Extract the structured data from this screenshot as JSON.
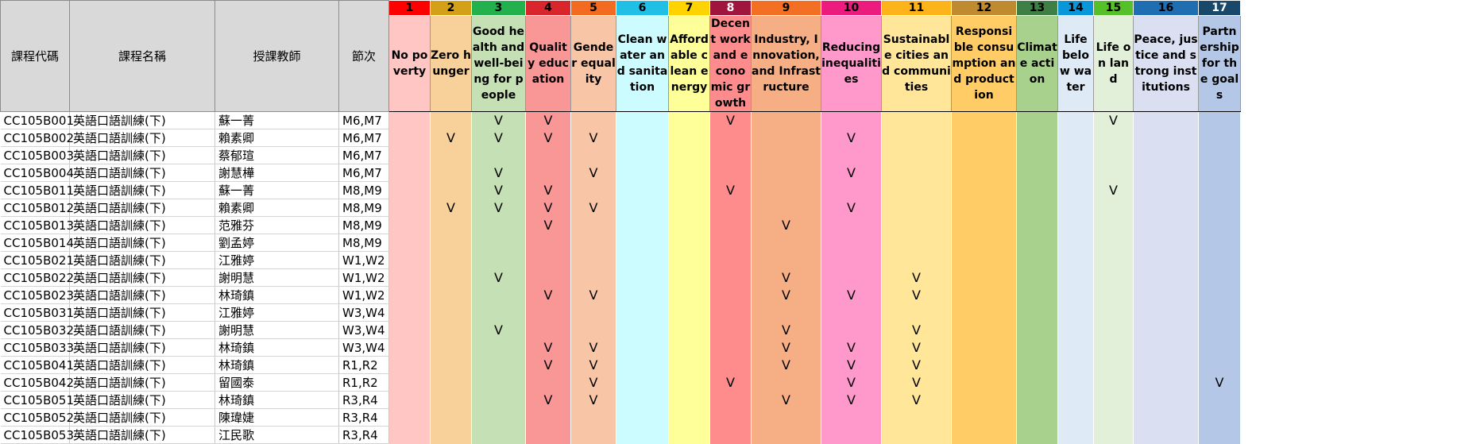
{
  "headers": [
    "課程代碼",
    "課程名稱",
    "授課教師",
    "節次"
  ],
  "goals": [
    {
      "num": "1",
      "label": "No poverty",
      "head": "#ff0000",
      "fill": "#ffc6c4",
      "white": false
    },
    {
      "num": "2",
      "label": "Zero hunger",
      "head": "#d4a017",
      "fill": "#f8d19a",
      "white": false
    },
    {
      "num": "3",
      "label": "Good health and well-being for people",
      "head": "#22b14c",
      "fill": "#c5e0b4",
      "white": false
    },
    {
      "num": "4",
      "label": "Quality education",
      "head": "#d9262c",
      "fill": "#f99696",
      "white": false
    },
    {
      "num": "5",
      "label": "Gender equality",
      "head": "#f26b20",
      "fill": "#f8c5a6",
      "white": false
    },
    {
      "num": "6",
      "label": "Clean water and sanitation",
      "head": "#1fbfe6",
      "fill": "#ccfcff",
      "white": false
    },
    {
      "num": "7",
      "label": "Affordable clean energy",
      "head": "#ffd300",
      "fill": "#ffff99",
      "white": false
    },
    {
      "num": "8",
      "label": "Decent work and economic growth",
      "head": "#a0153e",
      "fill": "#ff8c8c",
      "white": true
    },
    {
      "num": "9",
      "label": "Industry, Innovation, and Infrastructure",
      "head": "#f36f24",
      "fill": "#f6ae84",
      "white": false
    },
    {
      "num": "10",
      "label": "Reducing inequalities",
      "head": "#eb1c7e",
      "fill": "#ff99cc",
      "white": false
    },
    {
      "num": "11",
      "label": "Sustainable cities and communities",
      "head": "#fcb41a",
      "fill": "#ffe699",
      "white": false
    },
    {
      "num": "12",
      "label": "Responsible consumption and production",
      "head": "#bf8b2e",
      "fill": "#ffcc66",
      "white": false
    },
    {
      "num": "13",
      "label": "Climate action",
      "head": "#3f7e44",
      "fill": "#a9d18e",
      "white": false
    },
    {
      "num": "14",
      "label": "Life below water",
      "head": "#0a97d9",
      "fill": "#deebf7",
      "white": false
    },
    {
      "num": "15",
      "label": "Life on land",
      "head": "#56c02b",
      "fill": "#e2efd9",
      "white": false
    },
    {
      "num": "16",
      "label": "Peace, justice and strong institutions",
      "head": "#1f6eb2",
      "fill": "#dae0f2",
      "white": false
    },
    {
      "num": "17",
      "label": "Partnership for the goals",
      "head": "#19486a",
      "fill": "#b4c7e7",
      "white": true
    }
  ],
  "rows": [
    {
      "code": "CC105B001",
      "name": "英語口語訓練(下)",
      "teacher": "蘇一菁",
      "period": "M6,M7",
      "marks": [
        3,
        4,
        8,
        15
      ]
    },
    {
      "code": "CC105B002",
      "name": "英語口語訓練(下)",
      "teacher": "賴素卿",
      "period": "M6,M7",
      "marks": [
        2,
        3,
        4,
        5,
        10
      ]
    },
    {
      "code": "CC105B003",
      "name": "英語口語訓練(下)",
      "teacher": "蔡郁瑄",
      "period": "M6,M7",
      "marks": []
    },
    {
      "code": "CC105B004",
      "name": "英語口語訓練(下)",
      "teacher": "謝慧樺",
      "period": "M6,M7",
      "marks": [
        3,
        5,
        10
      ]
    },
    {
      "code": "CC105B011",
      "name": "英語口語訓練(下)",
      "teacher": "蘇一菁",
      "period": "M8,M9",
      "marks": [
        3,
        4,
        8,
        15
      ]
    },
    {
      "code": "CC105B012",
      "name": "英語口語訓練(下)",
      "teacher": "賴素卿",
      "period": "M8,M9",
      "marks": [
        2,
        3,
        4,
        5,
        10
      ]
    },
    {
      "code": "CC105B013",
      "name": "英語口語訓練(下)",
      "teacher": "范雅芬",
      "period": "M8,M9",
      "marks": [
        4,
        9
      ]
    },
    {
      "code": "CC105B014",
      "name": "英語口語訓練(下)",
      "teacher": "劉孟婷",
      "period": "M8,M9",
      "marks": []
    },
    {
      "code": "CC105B021",
      "name": "英語口語訓練(下)",
      "teacher": "江雅婷",
      "period": "W1,W2",
      "marks": []
    },
    {
      "code": "CC105B022",
      "name": "英語口語訓練(下)",
      "teacher": "謝明慧",
      "period": "W1,W2",
      "marks": [
        3,
        9,
        11
      ]
    },
    {
      "code": "CC105B023",
      "name": "英語口語訓練(下)",
      "teacher": "林琦鎮",
      "period": "W1,W2",
      "marks": [
        4,
        5,
        9,
        10,
        11
      ]
    },
    {
      "code": "CC105B031",
      "name": "英語口語訓練(下)",
      "teacher": "江雅婷",
      "period": "W3,W4",
      "marks": []
    },
    {
      "code": "CC105B032",
      "name": "英語口語訓練(下)",
      "teacher": "謝明慧",
      "period": "W3,W4",
      "marks": [
        3,
        9,
        11
      ]
    },
    {
      "code": "CC105B033",
      "name": "英語口語訓練(下)",
      "teacher": "林琦鎮",
      "period": "W3,W4",
      "marks": [
        4,
        5,
        9,
        10,
        11
      ]
    },
    {
      "code": "CC105B041",
      "name": "英語口語訓練(下)",
      "teacher": "林琦鎮",
      "period": "R1,R2",
      "marks": [
        4,
        5,
        9,
        10,
        11
      ]
    },
    {
      "code": "CC105B042",
      "name": "英語口語訓練(下)",
      "teacher": "留國泰",
      "period": "R1,R2",
      "marks": [
        5,
        8,
        10,
        11,
        17
      ]
    },
    {
      "code": "CC105B051",
      "name": "英語口語訓練(下)",
      "teacher": "林琦鎮",
      "period": "R3,R4",
      "marks": [
        4,
        5,
        9,
        10,
        11
      ]
    },
    {
      "code": "CC105B052",
      "name": "英語口語訓練(下)",
      "teacher": "陳瑋婕",
      "period": "R3,R4",
      "marks": []
    },
    {
      "code": "CC105B053",
      "name": "英語口語訓練(下)",
      "teacher": "江民歌",
      "period": "R3,R4",
      "marks": []
    }
  ],
  "mark_symbol": "V"
}
